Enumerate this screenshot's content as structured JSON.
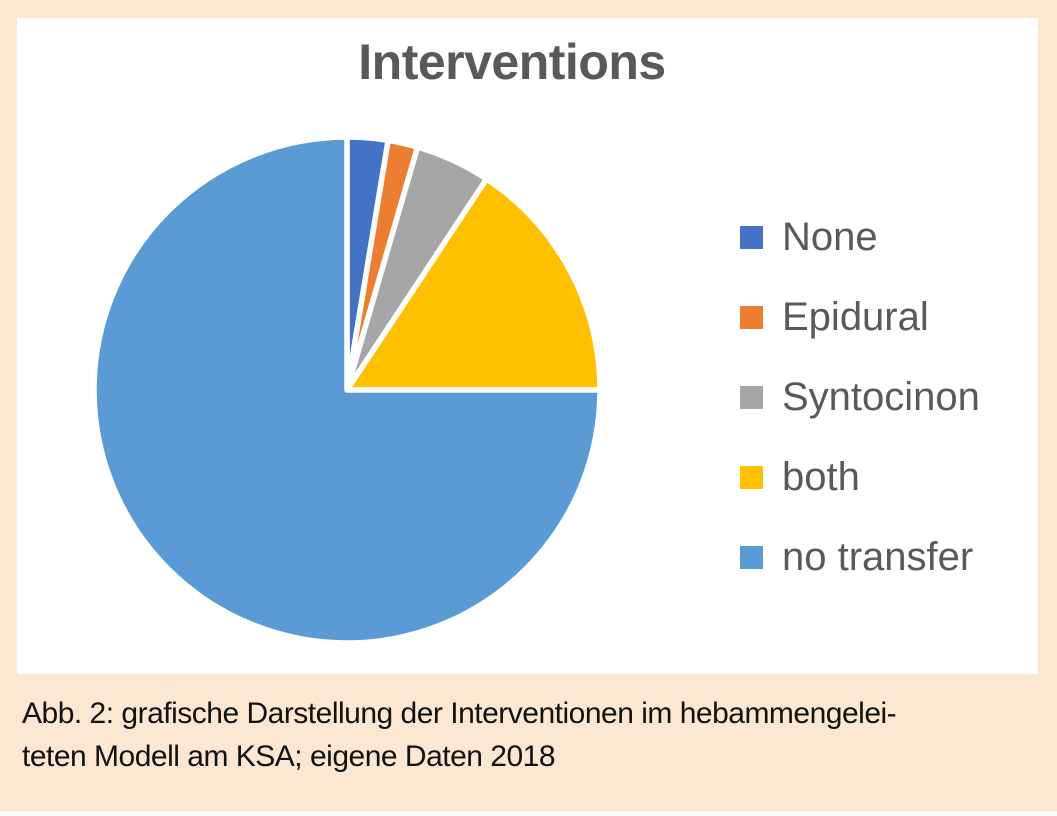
{
  "page": {
    "background": "#FCE7D2",
    "panel_background": "#FFFFFF"
  },
  "chart_data": {
    "type": "pie",
    "title": "Interventions",
    "categories": [
      "None",
      "Epidural",
      "Syntocinon",
      "both",
      "no transfer"
    ],
    "values": [
      2.6,
      1.9,
      4.8,
      15.7,
      75.0
    ],
    "unit": "percent (estimated from slice angles; no data labels shown)",
    "colors": [
      "#4472C4",
      "#ED7D31",
      "#A6A6A6",
      "#FFC000",
      "#5B9BD5"
    ],
    "start_angle_deg": 0,
    "direction": "clockwise",
    "legend_position": "right",
    "slice_border_color": "#FFFFFF",
    "title_color": "#595959",
    "legend_text_color": "#595959"
  },
  "legend": {
    "items": [
      {
        "label": "None",
        "color": "#4472C4"
      },
      {
        "label": "Epidural",
        "color": "#ED7D31"
      },
      {
        "label": "Syntocinon",
        "color": "#A6A6A6"
      },
      {
        "label": "both",
        "color": "#FFC000"
      },
      {
        "label": "no transfer",
        "color": "#5B9BD5"
      }
    ]
  },
  "caption": {
    "line1": "Abb. 2: grafische Darstellung der Interventionen im hebammengelei-",
    "line2": "teten Modell am KSA; eigene Daten 2018"
  }
}
